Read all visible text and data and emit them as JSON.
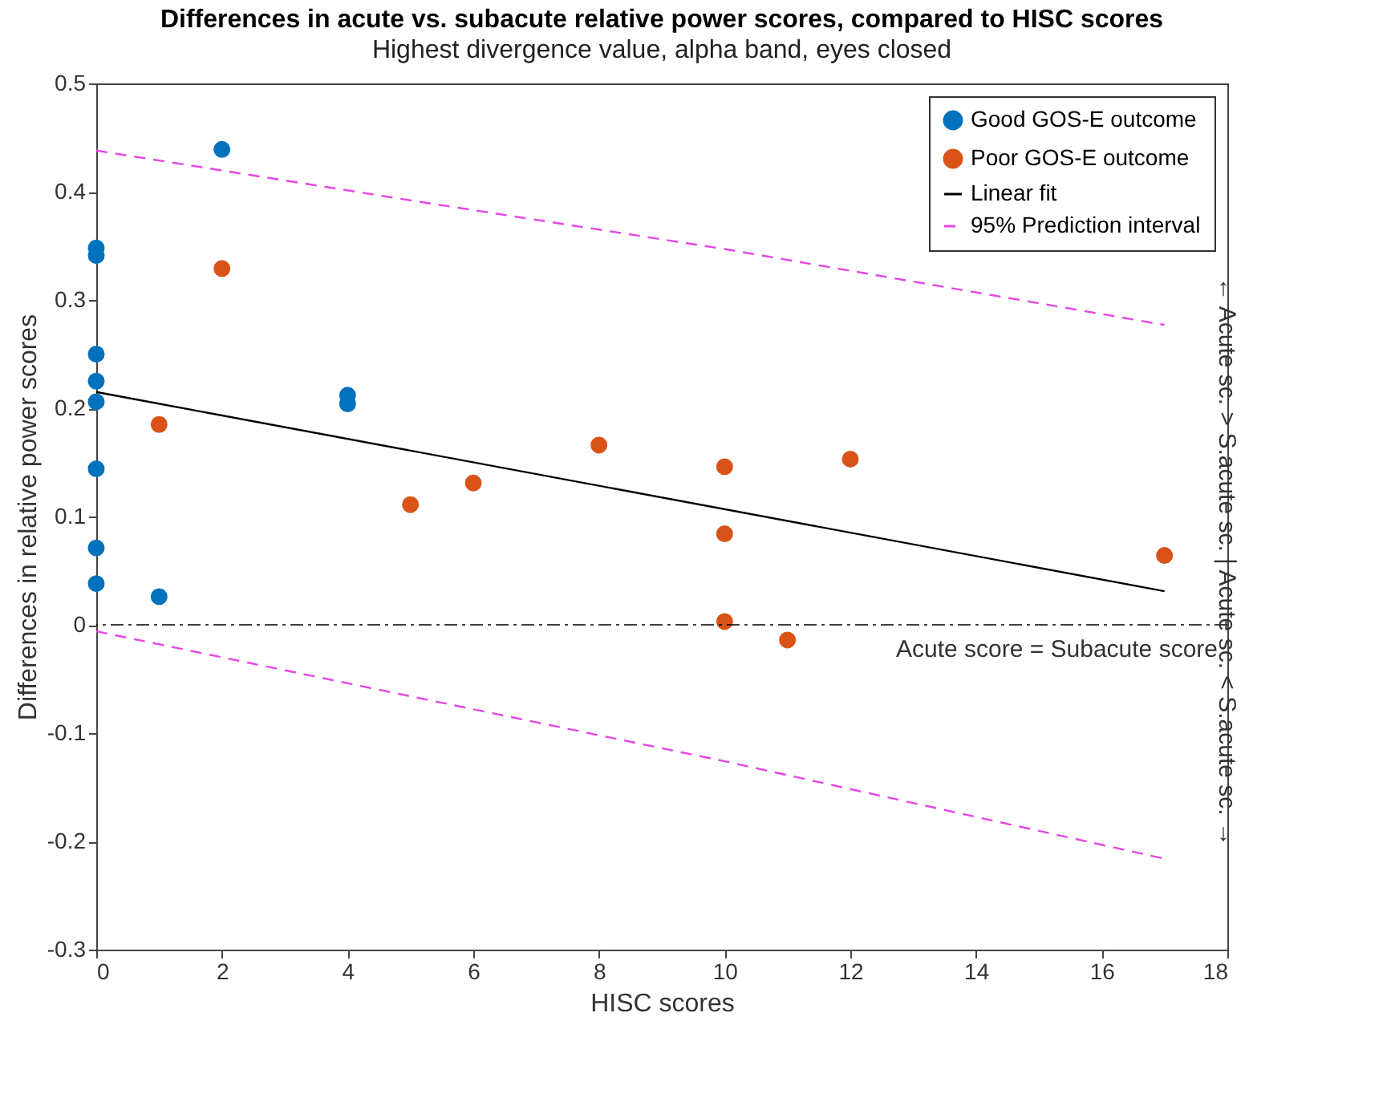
{
  "chart_data": {
    "type": "scatter",
    "title": "Differences in acute vs. subacute relative power scores, compared to HISC scores",
    "subtitle": "Highest divergence value, alpha band, eyes closed",
    "xlabel": "HISC scores",
    "ylabel": "Differences in relative power scores",
    "y2label": "← Acute sc. > S.acute sc. | Acute sc. < S.acute sc. →",
    "xlim": [
      0,
      18
    ],
    "xticks": [
      0,
      2,
      4,
      6,
      8,
      10,
      12,
      14,
      16,
      18
    ],
    "ylim": [
      -0.3,
      0.5
    ],
    "yticks": [
      -0.3,
      -0.2,
      -0.1,
      0,
      0.1,
      0.2,
      0.3,
      0.4,
      0.5
    ],
    "grid": false,
    "legend": "top right",
    "marker": "circle",
    "series": [
      {
        "name": "Good GOS-E outcome",
        "color": "#0072bd",
        "x": [
          0,
          0,
          0,
          0,
          0,
          0,
          0,
          0,
          1,
          2,
          4,
          4
        ],
        "values": [
          0.348,
          0.341,
          0.25,
          0.225,
          0.206,
          0.144,
          0.071,
          0.038,
          0.026,
          0.439,
          0.212,
          0.204
        ]
      },
      {
        "name": "Poor GOS-E outcome",
        "color": "#d95319",
        "x": [
          1,
          2,
          5,
          6,
          8,
          10,
          10,
          10,
          11,
          12,
          17
        ],
        "values": [
          0.185,
          0.329,
          0.111,
          0.131,
          0.166,
          0.146,
          0.084,
          0.003,
          -0.014,
          0.153,
          0.064
        ]
      },
      {
        "name": "Linear fit",
        "type": "line",
        "color": "#000000",
        "line_style": "solid",
        "marker": "none",
        "x": [
          0,
          17
        ],
        "values": [
          0.215,
          0.031
        ]
      },
      {
        "name": "95% Prediction interval",
        "type": "line",
        "color": "#e645e6",
        "line_style": "dashed",
        "marker": "none",
        "x": [
          0,
          5,
          10,
          17
        ],
        "values": [
          0.438,
          0.392,
          0.347,
          0.277
        ]
      },
      {
        "type": "line",
        "color": "#e645e6",
        "line_style": "dashed",
        "marker": "none",
        "x": [
          0,
          5,
          10,
          17
        ],
        "values": [
          -0.006,
          -0.066,
          -0.126,
          -0.216
        ]
      }
    ],
    "ref_lines": [
      {
        "axis": "y",
        "value": 0,
        "label": "Acute score = Subacute score",
        "color": "#000000",
        "line_style": "dashdot"
      }
    ]
  }
}
